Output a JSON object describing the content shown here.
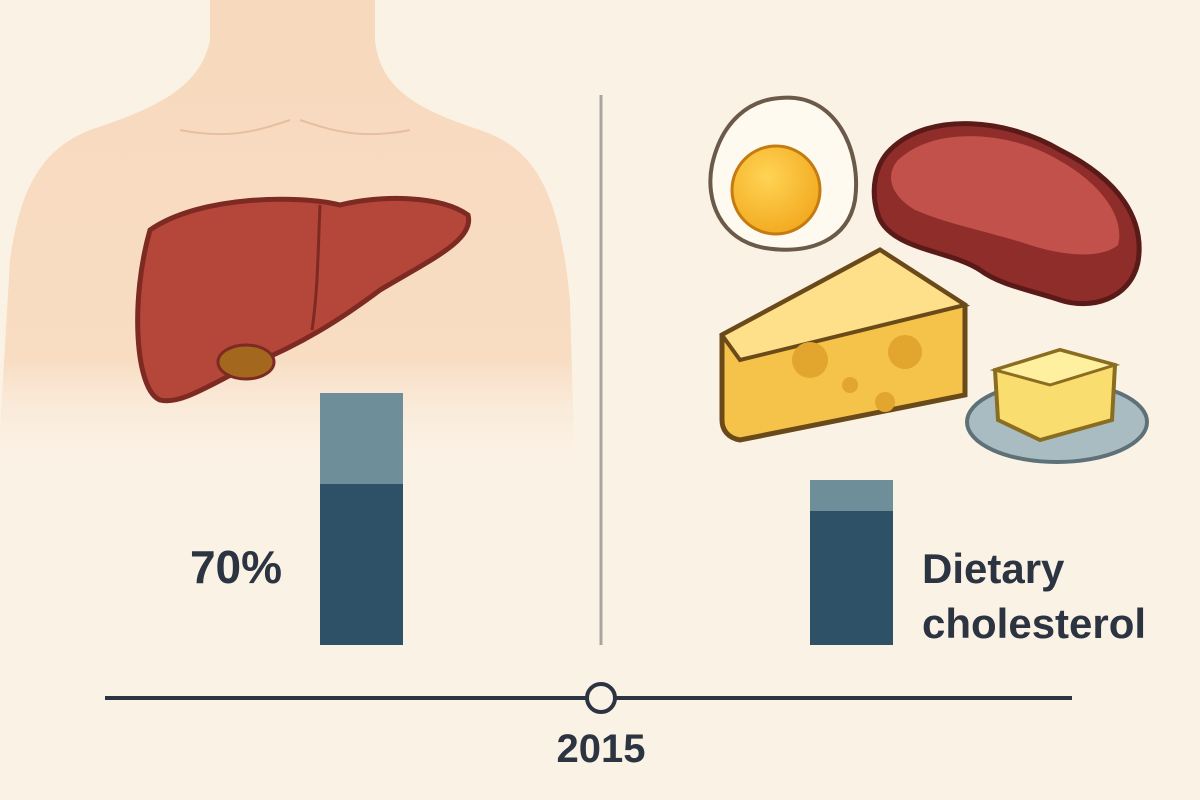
{
  "left_panel": {
    "label": "70%"
  },
  "right_panel": {
    "label_lines": [
      "Dietary",
      "cholesterol"
    ]
  },
  "timeline": {
    "year": "2015"
  }
}
